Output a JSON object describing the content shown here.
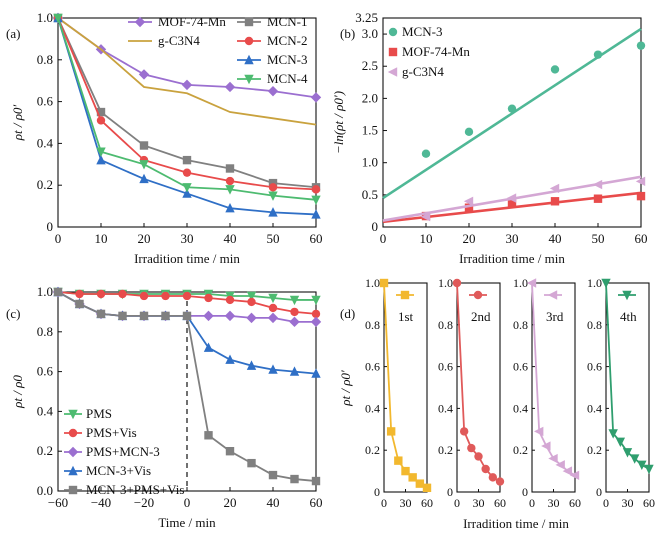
{
  "colors": {
    "mof": "#9b6fd0",
    "gc3n4": "#c9a23e",
    "mcn1": "#808080",
    "mcn2": "#e84b4b",
    "mcn3": "#2f6fc6",
    "mcn4": "#4dbb70",
    "mcn3_green": "#4fb896",
    "pms_green": "#4dbb70",
    "cycle_1st": "#f2b82e",
    "cycle_2nd": "#e05a5a",
    "cycle_3rd": "#d4a7d4",
    "cycle_4th": "#2f9e6e"
  },
  "chart_data": [
    {
      "panel": "(a)",
      "type": "line",
      "xlabel": "Irradition time / min",
      "ylabel": "ρt / ρ0′",
      "xlim": [
        0,
        60
      ],
      "ylim": [
        0,
        1.0
      ],
      "xticks": [
        "0",
        "10",
        "20",
        "30",
        "40",
        "50",
        "60"
      ],
      "yticks": [
        "0",
        "0.2",
        "0.4",
        "0.6",
        "0.8",
        "1.0"
      ],
      "x": [
        0,
        10,
        20,
        30,
        40,
        50,
        60
      ],
      "legend": "top",
      "series": [
        {
          "name": "MOF-74-Mn",
          "marker": "diamond",
          "color": "#9b6fd0",
          "values": [
            1.0,
            0.85,
            0.73,
            0.68,
            0.67,
            0.65,
            0.62
          ]
        },
        {
          "name": "g-C3N4",
          "marker": "none",
          "color": "#c9a23e",
          "values": [
            1.0,
            0.85,
            0.67,
            0.64,
            0.55,
            0.52,
            0.49
          ]
        },
        {
          "name": "MCN-1",
          "marker": "square",
          "color": "#808080",
          "values": [
            1.0,
            0.55,
            0.39,
            0.32,
            0.28,
            0.21,
            0.19
          ]
        },
        {
          "name": "MCN-2",
          "marker": "circle",
          "color": "#e84b4b",
          "values": [
            1.0,
            0.51,
            0.32,
            0.26,
            0.22,
            0.19,
            0.18
          ]
        },
        {
          "name": "MCN-3",
          "marker": "triangle",
          "color": "#2f6fc6",
          "values": [
            1.0,
            0.32,
            0.23,
            0.16,
            0.09,
            0.07,
            0.06
          ]
        },
        {
          "name": "MCN-4",
          "marker": "triangle-down",
          "color": "#4dbb70",
          "values": [
            1.0,
            0.36,
            0.3,
            0.19,
            0.18,
            0.15,
            0.13
          ]
        }
      ]
    },
    {
      "panel": "(b)",
      "type": "scatter",
      "xlabel": "Irradition time / min",
      "ylabel": "−ln(ρt / ρ0′)",
      "xlim": [
        0,
        60
      ],
      "ylim": [
        0,
        3.25
      ],
      "xticks": [
        "0",
        "10",
        "20",
        "30",
        "40",
        "50",
        "60"
      ],
      "yticks": [
        "0",
        "0.5",
        "1.0",
        "1.5",
        "2.0",
        "2.5",
        "3.0",
        "3.25"
      ],
      "legend": "top-left",
      "series": [
        {
          "name": "MCN-3",
          "marker": "circle",
          "color": "#4fb896",
          "x": [
            10,
            20,
            30,
            40,
            50,
            60
          ],
          "values": [
            1.14,
            1.48,
            1.84,
            2.45,
            2.68,
            2.82
          ],
          "fit": [
            [
              0,
              0.45
            ],
            [
              60,
              3.08
            ]
          ]
        },
        {
          "name": "MOF-74-Mn",
          "marker": "square",
          "color": "#e84b4b",
          "x": [
            10,
            20,
            30,
            40,
            50,
            60
          ],
          "values": [
            0.17,
            0.3,
            0.37,
            0.4,
            0.44,
            0.48
          ],
          "fit": [
            [
              0,
              0.08
            ],
            [
              60,
              0.53
            ]
          ]
        },
        {
          "name": "g-C3N4",
          "marker": "triangle-left",
          "color": "#d4a7d4",
          "x": [
            10,
            20,
            30,
            40,
            50,
            60
          ],
          "values": [
            0.16,
            0.4,
            0.45,
            0.6,
            0.66,
            0.71
          ],
          "fit": [
            [
              0,
              0.1
            ],
            [
              60,
              0.78
            ]
          ]
        }
      ]
    },
    {
      "panel": "(c)",
      "type": "line",
      "xlabel": "Time / min",
      "ylabel": "ρt / ρ0",
      "xlim": [
        -60,
        60
      ],
      "ylim": [
        0,
        1.0
      ],
      "xticks": [
        "−60",
        "−40",
        "−20",
        "0",
        "20",
        "40",
        "60"
      ],
      "yticks": [
        "0.0",
        "0.2",
        "0.4",
        "0.6",
        "0.8",
        "1.0"
      ],
      "x": [
        -60,
        -50,
        -40,
        -30,
        -20,
        -10,
        0,
        10,
        20,
        30,
        40,
        50,
        60
      ],
      "vline_x": 0,
      "legend": "bottom-left",
      "series": [
        {
          "name": "PMS",
          "marker": "triangle-down",
          "color": "#4dbb70",
          "values": [
            1.0,
            0.99,
            0.99,
            0.99,
            0.99,
            0.99,
            0.99,
            0.99,
            0.98,
            0.98,
            0.97,
            0.96,
            0.96
          ]
        },
        {
          "name": "PMS+Vis",
          "marker": "circle",
          "color": "#e84b4b",
          "values": [
            1.0,
            0.99,
            0.99,
            0.99,
            0.98,
            0.98,
            0.98,
            0.97,
            0.96,
            0.95,
            0.92,
            0.9,
            0.89
          ]
        },
        {
          "name": "PMS+MCN-3",
          "marker": "diamond",
          "color": "#9b6fd0",
          "values": [
            1.0,
            0.94,
            0.89,
            0.88,
            0.88,
            0.88,
            0.88,
            0.88,
            0.88,
            0.87,
            0.87,
            0.85,
            0.85
          ]
        },
        {
          "name": "MCN-3+Vis",
          "marker": "triangle",
          "color": "#2f6fc6",
          "values": [
            1.0,
            0.94,
            0.89,
            0.88,
            0.88,
            0.88,
            0.88,
            0.72,
            0.66,
            0.63,
            0.61,
            0.6,
            0.59
          ]
        },
        {
          "name": "MCN-3+PMS+Vis",
          "marker": "square",
          "color": "#808080",
          "values": [
            1.0,
            0.94,
            0.89,
            0.88,
            0.88,
            0.88,
            0.88,
            0.28,
            0.2,
            0.14,
            0.08,
            0.06,
            0.05
          ]
        }
      ]
    },
    {
      "panel": "(d)",
      "type": "line",
      "xlabel": "Irradition time / min",
      "ylabel": "ρt / ρ0′",
      "ylim": [
        0,
        1.0
      ],
      "yticks": [
        "0",
        "0.2",
        "0.4",
        "0.6",
        "0.8",
        "1.0"
      ],
      "xticks": [
        "0",
        "30",
        "60"
      ],
      "x": [
        0,
        10,
        20,
        30,
        40,
        50,
        60
      ],
      "subplots": [
        {
          "name": "1st",
          "marker": "square",
          "color": "#f2b82e",
          "values": [
            1.0,
            0.29,
            0.15,
            0.1,
            0.07,
            0.04,
            0.02
          ]
        },
        {
          "name": "2nd",
          "marker": "circle",
          "color": "#e05a5a",
          "values": [
            1.0,
            0.29,
            0.21,
            0.17,
            0.11,
            0.07,
            0.05
          ]
        },
        {
          "name": "3rd",
          "marker": "triangle-left",
          "color": "#d4a7d4",
          "values": [
            1.0,
            0.29,
            0.22,
            0.16,
            0.13,
            0.1,
            0.08
          ]
        },
        {
          "name": "4th",
          "marker": "triangle-down",
          "color": "#2f9e6e",
          "values": [
            1.0,
            0.28,
            0.24,
            0.19,
            0.16,
            0.13,
            0.11
          ]
        }
      ]
    }
  ]
}
